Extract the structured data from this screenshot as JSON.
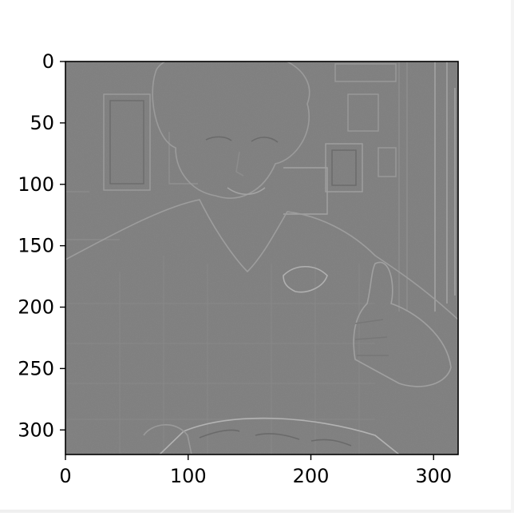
{
  "chart_data": {
    "type": "heatmap",
    "title": "",
    "xlabel": "",
    "ylabel": "",
    "image_size": [
      320,
      320
    ],
    "colormap": "gray",
    "xlim": [
      0,
      320
    ],
    "ylim": [
      320,
      0
    ],
    "x_ticks": [
      0,
      100,
      200,
      300
    ],
    "y_ticks": [
      0,
      50,
      100,
      150,
      200,
      250,
      300
    ],
    "x_tick_labels": [
      "0",
      "100",
      "200",
      "300"
    ],
    "y_tick_labels": [
      "0",
      "50",
      "100",
      "150",
      "200",
      "250",
      "300"
    ],
    "grid": false,
    "legend": "none",
    "colors": {
      "background": "#7f7f7f",
      "edge_light": "#9a9a9a",
      "edge_dark": "#676767",
      "axis": "#000000"
    }
  }
}
